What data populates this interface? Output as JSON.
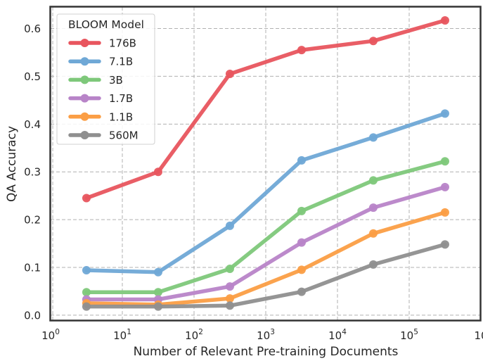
{
  "chart_data": {
    "type": "line",
    "title": "",
    "xlabel": "Number of Relevant Pre-training Documents",
    "ylabel": "QA Accuracy",
    "xscale": "log",
    "xlim": [
      1,
      1000000
    ],
    "ylim": [
      -0.012,
      0.645
    ],
    "x_ticks": [
      {
        "base": "10",
        "exp": "0"
      },
      {
        "base": "10",
        "exp": "1"
      },
      {
        "base": "10",
        "exp": "2"
      },
      {
        "base": "10",
        "exp": "3"
      },
      {
        "base": "10",
        "exp": "4"
      },
      {
        "base": "10",
        "exp": "5"
      },
      {
        "base": "10",
        "exp": ""
      }
    ],
    "y_ticks": [
      "0.0",
      "0.1",
      "0.2",
      "0.3",
      "0.4",
      "0.5",
      "0.6"
    ],
    "grid": true,
    "legend": {
      "title": "BLOOM Model",
      "placement": "top-left"
    },
    "x": [
      3.16,
      31.6,
      316,
      3160,
      31600,
      316000
    ],
    "series": [
      {
        "name": "176B",
        "color": "#e8555e",
        "values": [
          0.245,
          0.3,
          0.505,
          0.555,
          0.574,
          0.617
        ]
      },
      {
        "name": "7.1B",
        "color": "#6fa8d6",
        "values": [
          0.094,
          0.09,
          0.187,
          0.324,
          0.372,
          0.422
        ]
      },
      {
        "name": "3B",
        "color": "#7ec87a",
        "values": [
          0.048,
          0.048,
          0.097,
          0.218,
          0.282,
          0.322
        ]
      },
      {
        "name": "1.7B",
        "color": "#b884c8",
        "values": [
          0.033,
          0.033,
          0.06,
          0.152,
          0.225,
          0.268
        ]
      },
      {
        "name": "1.1B",
        "color": "#fb9e45",
        "values": [
          0.025,
          0.022,
          0.035,
          0.095,
          0.171,
          0.215
        ]
      },
      {
        "name": "560M",
        "color": "#8f8f8f",
        "values": [
          0.018,
          0.018,
          0.02,
          0.049,
          0.106,
          0.148
        ]
      }
    ]
  }
}
